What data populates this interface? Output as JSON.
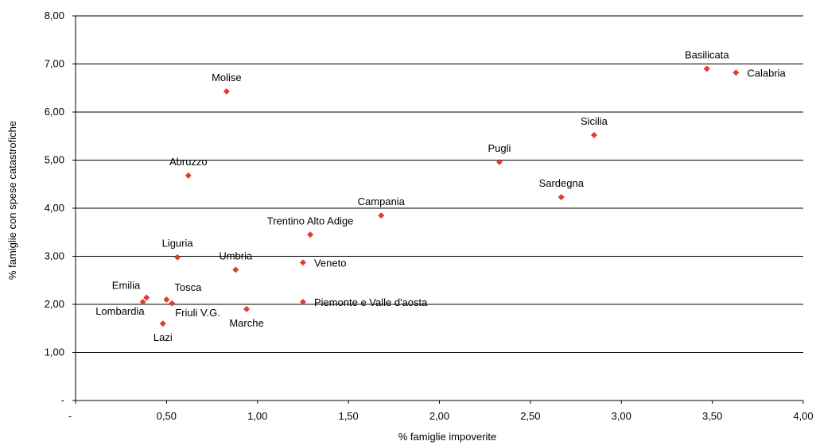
{
  "chart_data": {
    "type": "scatter",
    "title": "",
    "xlabel": "% famiglie impoverite",
    "ylabel": "% famiglie con spese catastrofiche",
    "xlim": [
      0,
      4
    ],
    "ylim": [
      0,
      8
    ],
    "x_ticks": [
      {
        "value": 0,
        "label": "-"
      },
      {
        "value": 0.5,
        "label": "0,50"
      },
      {
        "value": 1.0,
        "label": "1,00"
      },
      {
        "value": 1.5,
        "label": "1,50"
      },
      {
        "value": 2.0,
        "label": "2,00"
      },
      {
        "value": 2.5,
        "label": "2,50"
      },
      {
        "value": 3.0,
        "label": "3,00"
      },
      {
        "value": 3.5,
        "label": "3,50"
      },
      {
        "value": 4.0,
        "label": "4,00"
      }
    ],
    "y_ticks": [
      {
        "value": 0,
        "label": "-"
      },
      {
        "value": 1,
        "label": "1,00"
      },
      {
        "value": 2,
        "label": "2,00"
      },
      {
        "value": 3,
        "label": "3,00"
      },
      {
        "value": 4,
        "label": "4,00"
      },
      {
        "value": 5,
        "label": "5,00"
      },
      {
        "value": 6,
        "label": "6,00"
      },
      {
        "value": 7,
        "label": "7,00"
      },
      {
        "value": 8,
        "label": "8,00"
      }
    ],
    "grid": "horizontal",
    "marker_color": "#e03c31",
    "points": [
      {
        "label": "Basilicata",
        "x": 3.47,
        "y": 6.9,
        "label_pos": "above"
      },
      {
        "label": "Calabria",
        "x": 3.63,
        "y": 6.82,
        "label_pos": "right"
      },
      {
        "label": "Molise",
        "x": 0.83,
        "y": 6.43,
        "label_pos": "above"
      },
      {
        "label": "Sicilia",
        "x": 2.85,
        "y": 5.52,
        "label_pos": "above"
      },
      {
        "label": "Pugli",
        "x": 2.33,
        "y": 4.96,
        "label_pos": "above"
      },
      {
        "label": "Abruzzo",
        "x": 0.62,
        "y": 4.68,
        "label_pos": "above"
      },
      {
        "label": "Sardegna",
        "x": 2.67,
        "y": 4.23,
        "label_pos": "above"
      },
      {
        "label": "Campania",
        "x": 1.68,
        "y": 3.85,
        "label_pos": "above"
      },
      {
        "label": "Trentino Alto Adige",
        "x": 1.29,
        "y": 3.45,
        "label_pos": "above"
      },
      {
        "label": "Liguria",
        "x": 0.56,
        "y": 2.98,
        "label_pos": "above"
      },
      {
        "label": "Veneto",
        "x": 1.25,
        "y": 2.87,
        "label_pos": "right"
      },
      {
        "label": "Umbria",
        "x": 0.88,
        "y": 2.72,
        "label_pos": "above"
      },
      {
        "label": "Emilia",
        "x": 0.39,
        "y": 2.14,
        "label_pos": "above-left"
      },
      {
        "label": "Tosca",
        "x": 0.5,
        "y": 2.1,
        "label_pos": "above-right"
      },
      {
        "label": "Lombardia",
        "x": 0.37,
        "y": 2.05,
        "label_pos": "below-left"
      },
      {
        "label": "Friuli V.G.",
        "x": 0.53,
        "y": 2.02,
        "label_pos": "below-right"
      },
      {
        "label": "Piemonte e Valle d'aosta",
        "x": 1.25,
        "y": 2.05,
        "label_pos": "right"
      },
      {
        "label": "Marche",
        "x": 0.94,
        "y": 1.9,
        "label_pos": "below"
      },
      {
        "label": "Lazi",
        "x": 0.48,
        "y": 1.6,
        "label_pos": "below"
      }
    ]
  }
}
